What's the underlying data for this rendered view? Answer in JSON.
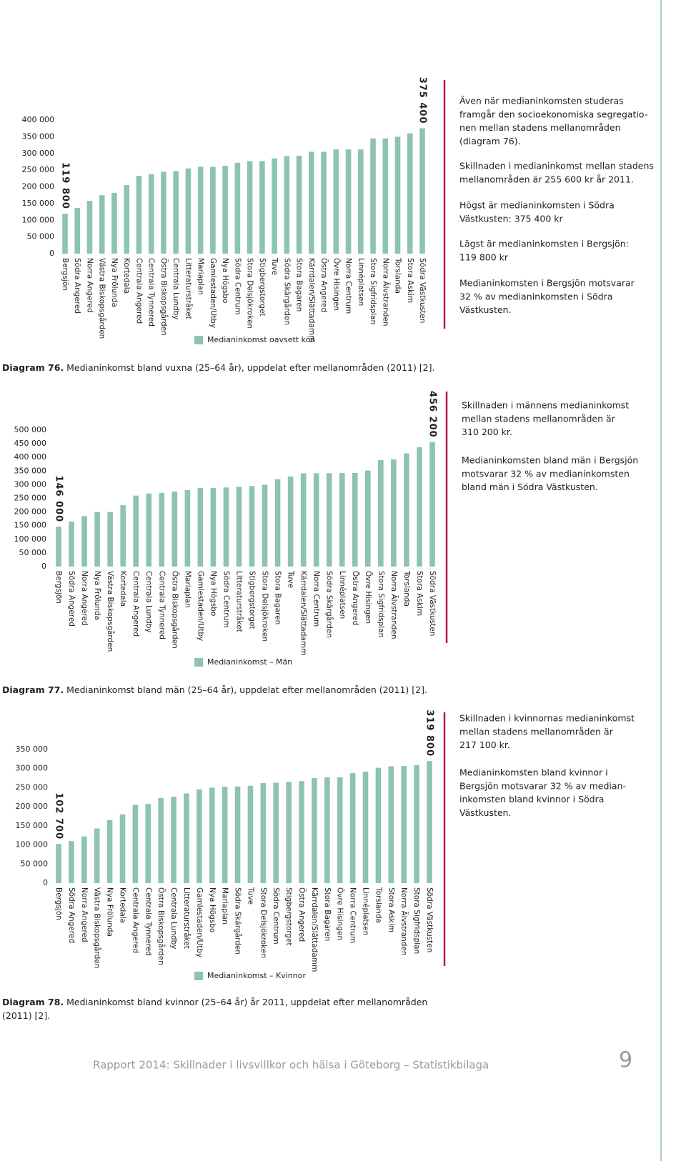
{
  "chart_data": [
    {
      "type": "bar",
      "categories": [
        "Bergsjön",
        "Södra Angered",
        "Norra Angered",
        "Västra Biskopsgården",
        "Nya Frölunda",
        "Kortedala",
        "Centrala Angered",
        "Centrala Tynnered",
        "Östra Biskopsgården",
        "Centrala Lundby",
        "Litteraturstråket",
        "Mariaplan",
        "Gamlestaden/Utby",
        "Nya Högsbo",
        "Södra Centrum",
        "Stora Delsjökroken",
        "Stigbergstorget",
        "Tuve",
        "Södra Skärgården",
        "Stora Bagaren",
        "Kärrdalen/Slättadamm",
        "Östra Angered",
        "Övre Hisingen",
        "Norra Centrum",
        "Linnéplatsen",
        "Stora Sigfridsplan",
        "Norra Älvstranden",
        "Torslanda",
        "Stora Askim",
        "Södra Västkusten"
      ],
      "series": [
        {
          "name": "Medianinkomst oavsett kön",
          "color": "#8dc3b3",
          "values": [
            119800,
            137000,
            158000,
            175000,
            182000,
            205000,
            233000,
            238000,
            245000,
            247000,
            255000,
            260000,
            260000,
            263000,
            272000,
            277000,
            277000,
            285000,
            292000,
            293000,
            305000,
            305000,
            312000,
            312000,
            312000,
            345000,
            345000,
            350000,
            360000,
            375400
          ],
          "value_labels": [
            "119 800",
            null,
            null,
            null,
            null,
            null,
            null,
            null,
            null,
            null,
            null,
            null,
            null,
            null,
            null,
            null,
            null,
            null,
            null,
            null,
            null,
            null,
            null,
            null,
            null,
            null,
            null,
            null,
            null,
            "375 400"
          ],
          "value_label_color": "#b5175a"
        }
      ],
      "ylim": [
        0,
        400000
      ],
      "yticks": [
        0,
        {
          "value": 50000,
          "label": "50 000"
        },
        {
          "value": 100000,
          "label": "100 000"
        },
        {
          "value": 150000,
          "label": "150 000"
        },
        {
          "value": 200000,
          "label": "200 000"
        },
        {
          "value": 250000,
          "label": "250 000"
        },
        {
          "value": 300000,
          "label": "300 000"
        },
        {
          "value": 350000,
          "label": "350 000"
        },
        {
          "value": 400000,
          "label": "400 000"
        }
      ],
      "grid": false,
      "caption_label": "Diagram 76.",
      "caption_lines": [
        " Medianinkomst bland vuxna (25–64 år), uppdelat efter mellanområden (2011) [2]."
      ],
      "notes": [
        [
          "Även när medianinkomsten studeras",
          "framgår den socioekonomiska segregatio-",
          "nen mellan stadens mellanområden",
          "(diagram 76)."
        ],
        [
          "Skillnaden i medianinkomst mellan stadens",
          "mellanområden är 255 600 kr år 2011."
        ],
        [
          "Högst är medianinkomsten i Södra",
          "Västkusten: 375 400 kr"
        ],
        [
          "Lägst är medianinkomsten i Bergsjön:",
          "119 800 kr"
        ],
        [
          "Medianinkomsten i Bergsjön motsvarar",
          "32 % av medianinkomsten i Södra",
          "Västkusten."
        ]
      ]
    },
    {
      "type": "bar",
      "categories": [
        "Bergsjön",
        "Södra Angered",
        "Norra Angered",
        "Nya Frölunda",
        "Västra Biskopsgården",
        "Kortedala",
        "Centrala Angered",
        "Centrala Lundby",
        "Centrala Tynnered",
        "Östra Biskopsgården",
        "Mariaplan",
        "Gamlestaden/Utby",
        "Nya Högsbo",
        "Södra Centrum",
        "Litteraturstråket",
        "Stigbergstorget",
        "Stora Delsjökroken",
        "Stora Bagaren",
        "Tuve",
        "Kärrdalen/Slättadamm",
        "Norra Centrum",
        "Södra Skärgården",
        "Linnéplatsen",
        "Östra Angered",
        "Övre Hisingen",
        "Stora Sigfridsplan",
        "Norra Älvstranden",
        "Torslanda",
        "Stora Askim",
        "Södra Västkusten"
      ],
      "series": [
        {
          "name": "Medianinkomst – Män",
          "color": "#8dc3b3",
          "values": [
            146000,
            165000,
            185000,
            200000,
            200000,
            225000,
            260000,
            268000,
            270000,
            275000,
            280000,
            288000,
            288000,
            290000,
            292000,
            295000,
            300000,
            320000,
            330000,
            342000,
            342000,
            342000,
            343000,
            343000,
            352000,
            390000,
            393000,
            415000,
            437000,
            456200
          ],
          "value_labels": [
            "146 000",
            null,
            null,
            null,
            null,
            null,
            null,
            null,
            null,
            null,
            null,
            null,
            null,
            null,
            null,
            null,
            null,
            null,
            null,
            null,
            null,
            null,
            null,
            null,
            null,
            null,
            null,
            null,
            null,
            "456 200"
          ],
          "value_label_color": "#b5175a"
        }
      ],
      "ylim": [
        0,
        500000
      ],
      "yticks": [
        0,
        {
          "value": 50000,
          "label": "50 000"
        },
        {
          "value": 100000,
          "label": "100 000"
        },
        {
          "value": 150000,
          "label": "150 000"
        },
        {
          "value": 200000,
          "label": "200 000"
        },
        {
          "value": 250000,
          "label": "250 000"
        },
        {
          "value": 300000,
          "label": "300 000"
        },
        {
          "value": 350000,
          "label": "350 000"
        },
        {
          "value": 400000,
          "label": "400 000"
        },
        {
          "value": 450000,
          "label": "450 000"
        },
        {
          "value": 500000,
          "label": "500 000"
        }
      ],
      "grid": false,
      "caption_label": "Diagram 77.",
      "caption_lines": [
        " Medianinkomst bland män (25–64 år), uppdelat efter mellanområden (2011) [2]."
      ],
      "notes": [
        [
          "Skillnaden i männens medianinkomst",
          "mellan stadens mellanområden är",
          "310 200 kr."
        ],
        [
          "Medianinkomsten bland män i Bergsjön",
          "motsvarar 32 % av medianinkomsten",
          "bland män i Södra Västkusten."
        ]
      ]
    },
    {
      "type": "bar",
      "categories": [
        "Bergsjön",
        "Södra Angered",
        "Norra Angered",
        "Västra Biskopsgården",
        "Nya Frölunda",
        "Kortedala",
        "Centrala Angered",
        "Centrala Tynnered",
        "Östra Biskopsgården",
        "Centrala Lundby",
        "Litteraturstråket",
        "Gamlestaden/Utby",
        "Nya Högsbo",
        "Mariaplan",
        "Södra Skärgården",
        "Tuve",
        "Stora Delsjökroken",
        "Södra Centrum",
        "Stigbergstorget",
        "Östra Angered",
        "Kärrdalen/Slättadamm",
        "Stora Bagaren",
        "Övre Hisingen",
        "Norra Centrum",
        "Linnéplatsen",
        "Torslanda",
        "Stora Askim",
        "Norra Älvstranden",
        "Stora Sigfridsplan",
        "Södra Västkusten"
      ],
      "series": [
        {
          "name": "Medianinkomst – Kvinnor",
          "color": "#8dc3b3",
          "values": [
            102700,
            110000,
            122000,
            143000,
            165000,
            180000,
            205000,
            207000,
            223000,
            226000,
            235000,
            245000,
            250000,
            252000,
            253000,
            255000,
            262000,
            263000,
            265000,
            267000,
            275000,
            277000,
            277000,
            288000,
            292000,
            302000,
            306000,
            307000,
            309000,
            319800
          ],
          "value_labels": [
            "102 700",
            null,
            null,
            null,
            null,
            null,
            null,
            null,
            null,
            null,
            null,
            null,
            null,
            null,
            null,
            null,
            null,
            null,
            null,
            null,
            null,
            null,
            null,
            null,
            null,
            null,
            null,
            null,
            null,
            "319 800"
          ],
          "value_label_color": "#b5175a"
        }
      ],
      "ylim": [
        0,
        350000
      ],
      "yticks": [
        0,
        {
          "value": 50000,
          "label": "50 000"
        },
        {
          "value": 100000,
          "label": "100 000"
        },
        {
          "value": 150000,
          "label": "150 000"
        },
        {
          "value": 200000,
          "label": "200 000"
        },
        {
          "value": 250000,
          "label": "250 000"
        },
        {
          "value": 300000,
          "label": "300 000"
        },
        {
          "value": 350000,
          "label": "350 000"
        }
      ],
      "grid": false,
      "caption_label": "Diagram 78.",
      "caption_lines": [
        " Medianinkomst bland kvinnor (25–64 år) år 2011, uppdelat efter mellanområden",
        "(2011) [2]."
      ],
      "notes": [
        [
          "Skillnaden i kvinnornas medianinkomst",
          "mellan stadens mellanområden är",
          "217 100 kr."
        ],
        [
          "Medianinkomsten bland kvinnor i",
          "Bergsjön motsvarar 32 % av median-",
          "inkomsten bland kvinnor i Södra",
          "Västkusten."
        ]
      ]
    }
  ],
  "footer": "Rapport 2014: Skillnader i livsvillkor och hälsa i Göteborg – Statistikbilaga",
  "page_number": 9
}
